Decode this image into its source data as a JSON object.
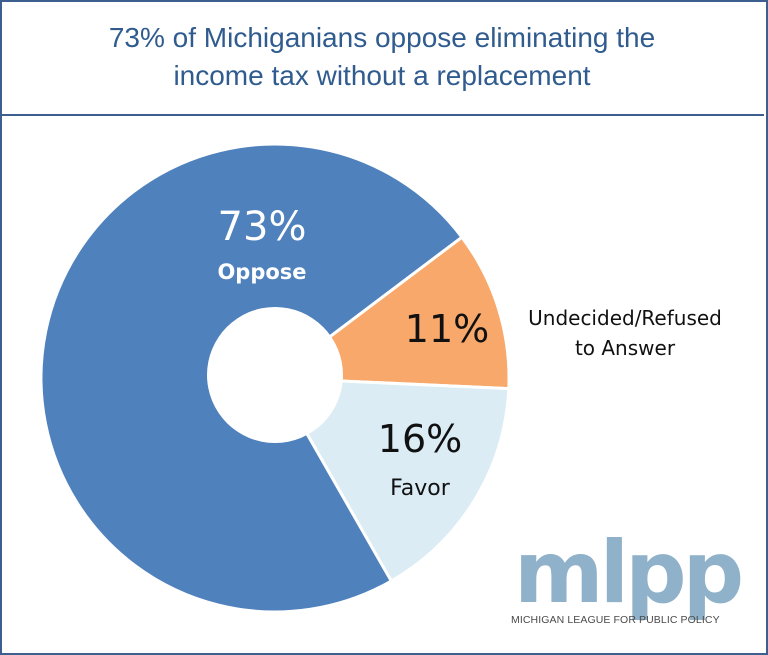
{
  "title": "73% of Michiganians oppose eliminating the income tax without a replacement",
  "title_lines": [
    "73% of Michiganians oppose eliminating the",
    "income tax without a replacement"
  ],
  "colors": {
    "border": "#3d5f8f",
    "title": "#2f5b8e",
    "oppose": "#4f81bd",
    "undecided": "#f7a86a",
    "favor": "#dbecf4",
    "logo": "#8fb1c9"
  },
  "slices": [
    {
      "key": "oppose",
      "value_label": "73%",
      "name_label": "Oppose"
    },
    {
      "key": "undecided",
      "value_label": "11%",
      "name_label_lines": [
        "Undecided/Refused",
        "to Answer"
      ]
    },
    {
      "key": "favor",
      "value_label": "16%",
      "name_label": "Favor"
    }
  ],
  "logo": {
    "mark": "mlpp",
    "subtitle": "MICHIGAN LEAGUE FOR PUBLIC POLICY"
  },
  "chart_data": {
    "type": "pie",
    "subtype": "donut",
    "title": "73% of Michiganians oppose eliminating the income tax without a replacement",
    "categories": [
      "Oppose",
      "Undecided/Refused to Answer",
      "Favor"
    ],
    "values": [
      73,
      11,
      16
    ],
    "unit": "%",
    "colors": [
      "#4f81bd",
      "#f7a86a",
      "#dbecf4"
    ],
    "start_angle_deg": 53,
    "direction": "clockwise",
    "legend": "none (direct labels)"
  }
}
